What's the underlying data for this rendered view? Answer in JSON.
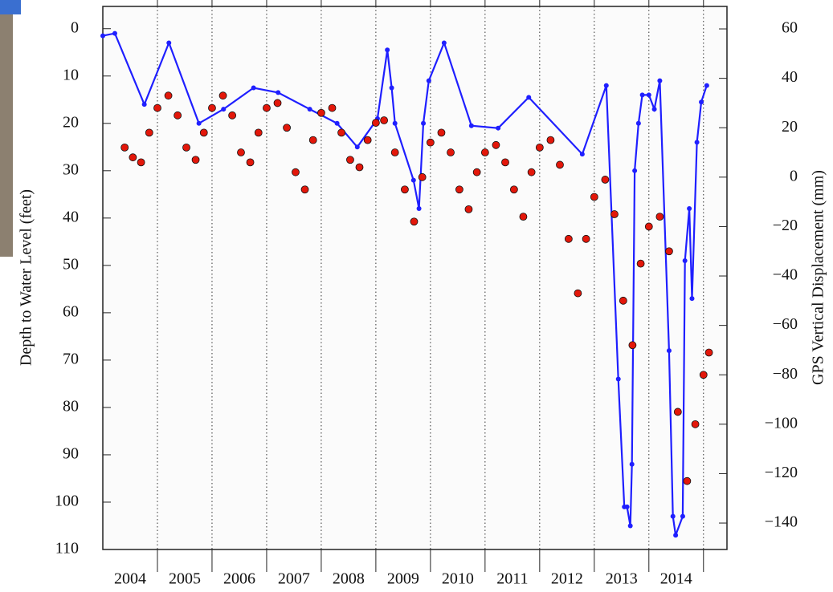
{
  "chart_data": {
    "type": "dual-axis-scatter-line",
    "y_label": "Depth to Water Level (feet)",
    "y2_label": "GPS Vertical Displacement (mm)",
    "xlim": [
      2004.0,
      2015.43
    ],
    "xticks": [
      {
        "value": 2004.5,
        "label": "2004"
      },
      {
        "value": 2005.5,
        "label": "2005"
      },
      {
        "value": 2006.5,
        "label": "2006"
      },
      {
        "value": 2007.5,
        "label": "2007"
      },
      {
        "value": 2008.5,
        "label": "2008"
      },
      {
        "value": 2009.5,
        "label": "2009"
      },
      {
        "value": 2010.5,
        "label": "2010"
      },
      {
        "value": 2011.5,
        "label": "2011"
      },
      {
        "value": 2012.5,
        "label": "2012"
      },
      {
        "value": 2013.5,
        "label": "2013"
      },
      {
        "value": 2014.5,
        "label": "2014"
      }
    ],
    "x_grid_lines": [
      2005,
      2006,
      2007,
      2008,
      2009,
      2010,
      2011,
      2012,
      2013,
      2014,
      2015
    ],
    "ylim": [
      110,
      -4.7
    ],
    "yticks": [
      0,
      10,
      20,
      30,
      40,
      50,
      60,
      70,
      80,
      90,
      100,
      110
    ],
    "y2lim": [
      -150.7,
      69.1
    ],
    "y2ticks": [
      60,
      40,
      20,
      0,
      {
        "value": -20,
        "label": "−20"
      },
      {
        "value": -40,
        "label": "−40"
      },
      {
        "value": -60,
        "label": "−60"
      },
      {
        "value": -80,
        "label": "−80"
      },
      {
        "value": -100,
        "label": "−100"
      },
      {
        "value": -120,
        "label": "−120"
      },
      {
        "value": -140,
        "label": "−140"
      }
    ],
    "series": [
      {
        "name": "Water level",
        "kind": "line",
        "axis": "y",
        "color": "#1f1fff",
        "x": [
          2004.0,
          2004.22,
          2004.76,
          2005.21,
          2005.76,
          2006.21,
          2006.76,
          2007.21,
          2007.79,
          2008.29,
          2008.66,
          2009.03,
          2009.21,
          2009.29,
          2009.35,
          2009.69,
          2009.79,
          2009.87,
          2009.97,
          2010.25,
          2010.75,
          2011.24,
          2011.8,
          2012.78,
          2013.22,
          2013.44,
          2013.55,
          2013.6,
          2013.66,
          2013.69,
          2013.74,
          2013.81,
          2013.88,
          2014.0,
          2014.1,
          2014.2,
          2014.37,
          2014.44,
          2014.49,
          2014.62,
          2014.66,
          2014.74,
          2014.79,
          2014.88,
          2014.96,
          2015.06
        ],
        "values": [
          1.5,
          1,
          16,
          3,
          20,
          17,
          12.5,
          13.5,
          17,
          20,
          25,
          19,
          4.5,
          12.5,
          20,
          32,
          38,
          20,
          11,
          3,
          20.5,
          21,
          14.5,
          26.5,
          12,
          74,
          101,
          101,
          105,
          92,
          30,
          20,
          14,
          14,
          17,
          11,
          68,
          103,
          107,
          103,
          49,
          38,
          57,
          24,
          15.5,
          12
        ]
      },
      {
        "name": "GPS",
        "kind": "scatter",
        "axis": "y2",
        "color": "#e3170a",
        "x": [
          2004.4,
          2004.55,
          2004.7,
          2004.85,
          2005.0,
          2005.2,
          2005.37,
          2005.53,
          2005.7,
          2005.85,
          2006.0,
          2006.2,
          2006.37,
          2006.53,
          2006.7,
          2006.85,
          2007.0,
          2007.2,
          2007.37,
          2007.53,
          2007.7,
          2007.85,
          2008.0,
          2008.2,
          2008.37,
          2008.53,
          2008.7,
          2008.85,
          2009.0,
          2009.15,
          2009.35,
          2009.53,
          2009.7,
          2009.85,
          2010.0,
          2010.2,
          2010.37,
          2010.53,
          2010.7,
          2010.85,
          2011.0,
          2011.2,
          2011.37,
          2011.53,
          2011.7,
          2011.85,
          2012.0,
          2012.2,
          2012.37,
          2012.53,
          2012.7,
          2012.85,
          2013.0,
          2013.2,
          2013.37,
          2013.53,
          2013.7,
          2013.85,
          2014.0,
          2014.2,
          2014.37,
          2014.53,
          2014.7,
          2014.85,
          2015.0,
          2015.1
        ],
        "values": [
          12,
          8,
          6,
          18,
          28,
          33,
          25,
          12,
          7,
          18,
          28,
          33,
          25,
          10,
          6,
          18,
          28,
          30,
          20,
          2,
          -5,
          15,
          26,
          28,
          18,
          7,
          4,
          15,
          22,
          23,
          10,
          -5,
          -18,
          0,
          14,
          18,
          10,
          -5,
          -13,
          2,
          10,
          13,
          6,
          -5,
          -16,
          2,
          12,
          15,
          5,
          -25,
          -47,
          -25,
          -8,
          -1,
          -15,
          -50,
          -68,
          -35,
          -20,
          -16,
          -30,
          -95,
          -123,
          -100,
          -80,
          -71
        ]
      }
    ]
  }
}
